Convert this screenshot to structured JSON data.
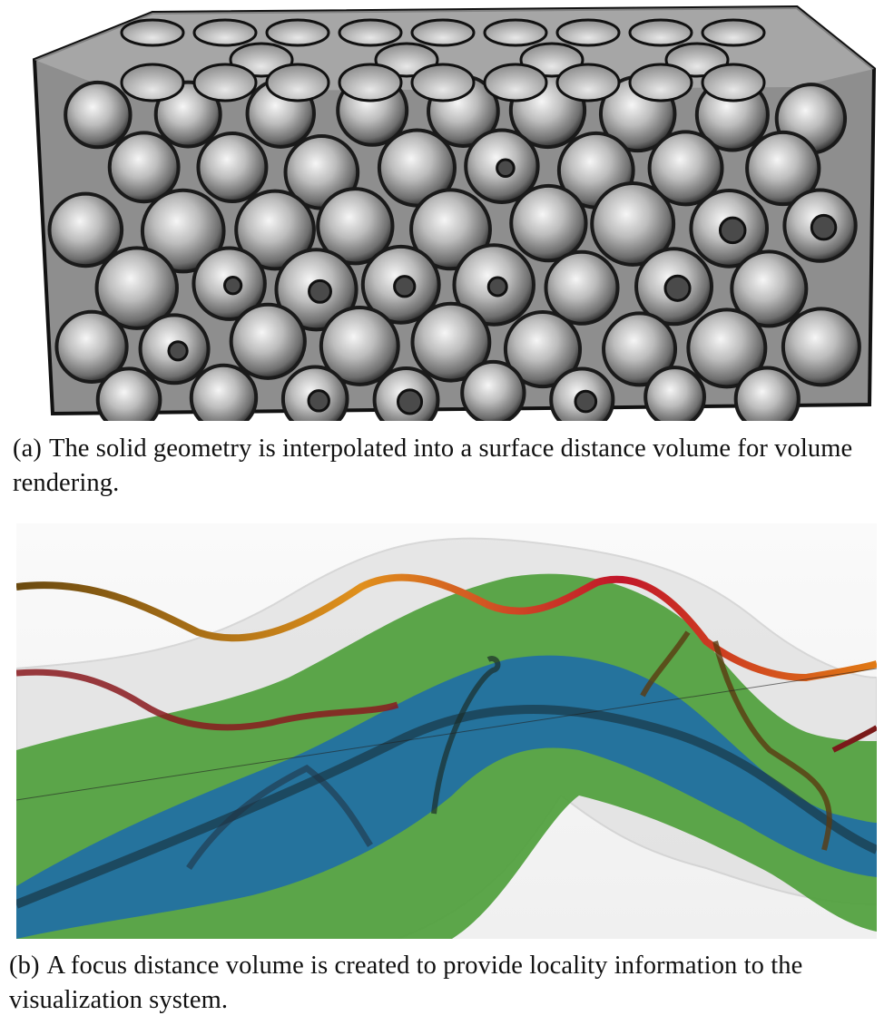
{
  "figure": {
    "subfigures": [
      {
        "label": "(a)",
        "caption": "The solid geometry is interpolated into a surface distance volume for volume rendering."
      },
      {
        "label": "(b)",
        "caption": "A focus distance volume is created to provide locality information to the visualization system."
      }
    ]
  },
  "colors": {
    "sphere_light": "#f2f2f2",
    "sphere_mid": "#9a9a9a",
    "sphere_dark": "#3a3a3a",
    "outline": "#1a1a1a",
    "green_band": "#4fa03c",
    "blue_core": "#1f6ea6",
    "tube_orange": "#d9861a",
    "tube_red": "#c2162a"
  },
  "icons": {
    "panel_a_image": "porous-sphere-packing-render",
    "panel_b_image": "focus-distance-tube-render"
  }
}
